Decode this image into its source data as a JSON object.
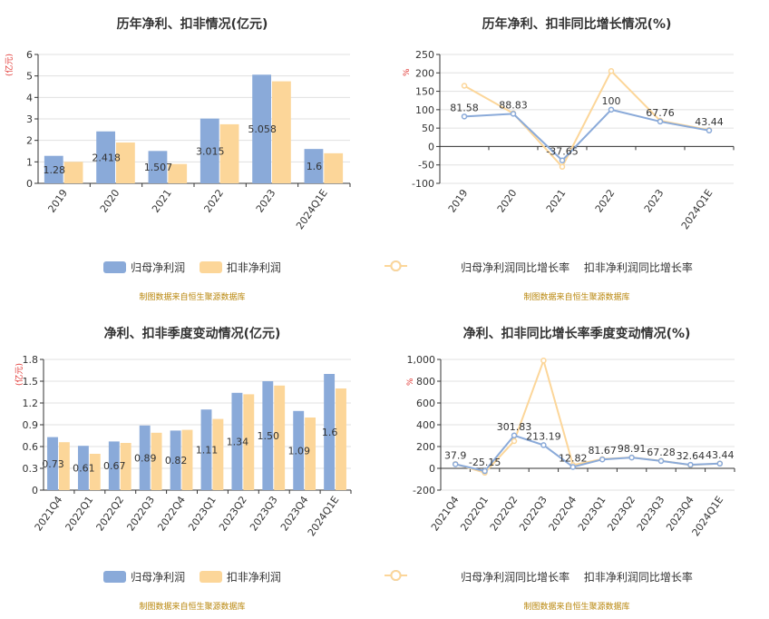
{
  "colors": {
    "blue": "#8aaad9",
    "orange": "#fcd699",
    "axis": "#333333",
    "grid": "#e0e0e0"
  },
  "chart_data": [
    {
      "type": "bar",
      "title": "历年净利、扣非情况(亿元)",
      "unit": "(亿元)",
      "categories": [
        "2019",
        "2020",
        "2021",
        "2022",
        "2023",
        "2024Q1E"
      ],
      "series": [
        {
          "name": "归母净利润",
          "values": [
            1.28,
            2.418,
            1.507,
            3.015,
            5.058,
            1.6
          ]
        },
        {
          "name": "扣非净利润",
          "values": [
            1.0,
            1.9,
            0.9,
            2.75,
            4.75,
            1.4
          ]
        }
      ],
      "data_labels": [
        "1.28",
        "2.418",
        "1.507",
        "3.015",
        "5.058",
        "1.6"
      ],
      "ylim": [
        0,
        6
      ],
      "yticks": [
        "0",
        "1",
        "2",
        "3",
        "4",
        "5",
        "6"
      ],
      "source": "制图数据来自恒生聚源数据库"
    },
    {
      "type": "line",
      "title": "历年净利、扣非同比增长情况(%)",
      "unit": "%",
      "categories": [
        "2019",
        "2020",
        "2021",
        "2022",
        "2023",
        "2024Q1E"
      ],
      "series": [
        {
          "name": "归母净利润同比增长率",
          "values": [
            81.58,
            88.83,
            -37.65,
            100,
            67.76,
            43.44
          ]
        },
        {
          "name": "扣非净利润同比增长率",
          "values": [
            165,
            90,
            -55,
            205,
            70,
            45
          ]
        }
      ],
      "data_labels": [
        "81.58",
        "88.83",
        "-37.65",
        "100",
        "67.76",
        "43.44"
      ],
      "ylim": [
        -100,
        250
      ],
      "yticks": [
        "-100",
        "-50",
        "0",
        "50",
        "100",
        "150",
        "200",
        "250"
      ],
      "source": "制图数据来自恒生聚源数据库"
    },
    {
      "type": "bar",
      "title": "净利、扣非季度变动情况(亿元)",
      "unit": "(亿元)",
      "categories": [
        "2021Q4",
        "2022Q1",
        "2022Q2",
        "2022Q3",
        "2022Q4",
        "2023Q1",
        "2023Q2",
        "2023Q3",
        "2023Q4",
        "2024Q1E"
      ],
      "series": [
        {
          "name": "归母净利润",
          "values": [
            0.73,
            0.61,
            0.67,
            0.89,
            0.82,
            1.11,
            1.34,
            1.5,
            1.09,
            1.6
          ]
        },
        {
          "name": "扣非净利润",
          "values": [
            0.66,
            0.5,
            0.65,
            0.79,
            0.83,
            0.98,
            1.32,
            1.44,
            1.0,
            1.4
          ]
        }
      ],
      "data_labels": [
        "0.73",
        "0.61",
        "0.67",
        "0.89",
        "0.82",
        "1.11",
        "1.34",
        "1.50",
        "1.09",
        "1.6"
      ],
      "ylim": [
        0,
        1.8
      ],
      "yticks": [
        "0",
        "0.3",
        "0.6",
        "0.9",
        "1.2",
        "1.5",
        "1.8"
      ],
      "source": "制图数据来自恒生聚源数据库"
    },
    {
      "type": "line",
      "title": "净利、扣非同比增长率季度变动情况(%)",
      "unit": "%",
      "categories": [
        "2021Q4",
        "2022Q1",
        "2022Q2",
        "2022Q3",
        "2022Q4",
        "2023Q1",
        "2023Q2",
        "2023Q3",
        "2023Q4",
        "2024Q1E"
      ],
      "series": [
        {
          "name": "归母净利润同比增长率",
          "values": [
            37.9,
            -25.15,
            301.83,
            213.19,
            12.82,
            81.67,
            98.91,
            67.28,
            32.64,
            43.44
          ]
        },
        {
          "name": "扣非净利润同比增长率",
          "values": [
            40,
            -40,
            250,
            990,
            30,
            85,
            100,
            70,
            30,
            45
          ]
        }
      ],
      "data_labels": [
        "37.9",
        "-25.15",
        "301.83",
        "213.19",
        "12.82",
        "81.67",
        "98.91",
        "67.28",
        "32.64",
        "43.44"
      ],
      "ylim": [
        -200,
        1000
      ],
      "yticks": [
        "-200",
        "0",
        "200",
        "400",
        "600",
        "800",
        "1,000"
      ],
      "source": "制图数据来自恒生聚源数据库"
    }
  ]
}
